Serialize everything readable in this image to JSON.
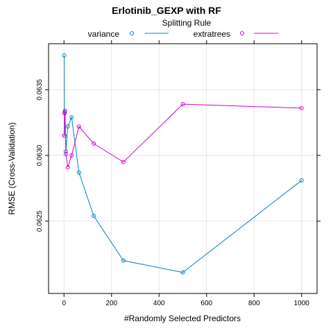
{
  "chart_data": {
    "type": "line",
    "title": "Erlotinib_GEXP with RF",
    "xlabel": "#Randomly Selected Predictors",
    "ylabel": "RMSE (Cross-Validation)",
    "xlim": [
      -65,
      1065
    ],
    "ylim": [
      0.06195,
      0.06385
    ],
    "xticks": [
      0,
      200,
      400,
      600,
      800,
      1000
    ],
    "yticks": [
      0.0625,
      0.063,
      0.0635
    ],
    "ytick_labels": [
      "0.0625",
      "0.0630",
      "0.0635"
    ],
    "grid": true,
    "legend": {
      "title": "Splitting Rule",
      "placement": "top"
    },
    "series": [
      {
        "name": "variance",
        "color": "#0080C0",
        "x": [
          1,
          2,
          4,
          8,
          16,
          32,
          63,
          125,
          250,
          500,
          1000
        ],
        "y": [
          0.06376,
          0.06315,
          0.06334,
          0.06303,
          0.06322,
          0.06329,
          0.06287,
          0.06254,
          0.0622,
          0.06211,
          0.06281
        ]
      },
      {
        "name": "extratrees",
        "color": "#D000D0",
        "x": [
          1,
          2,
          4,
          8,
          16,
          32,
          63,
          125,
          250,
          500,
          1000
        ],
        "y": [
          0.06315,
          0.06332,
          0.06333,
          0.06301,
          0.06291,
          0.063,
          0.06322,
          0.06309,
          0.06295,
          0.06339,
          0.06336
        ]
      }
    ]
  }
}
